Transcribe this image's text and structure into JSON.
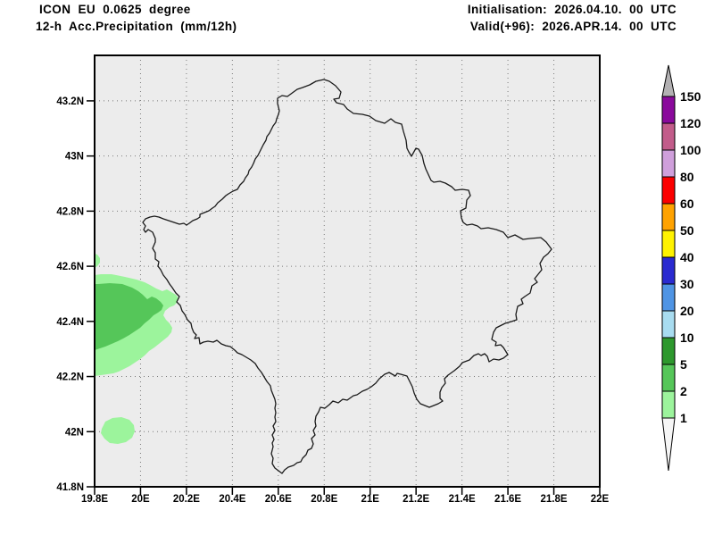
{
  "page": {
    "background": "#ffffff"
  },
  "header": {
    "title_line1": "ICON EU 0.0625 degree",
    "title_line2": "12-h Acc.Precipitation (mm/12h)",
    "init_label": "Initialisation: 2026.04.10. 00 UTC",
    "valid_label": "Valid(+96): 2026.APR.14. 00 UTC"
  },
  "map": {
    "land_color": "#ececec",
    "frame_color": "#000000",
    "grid_color": "#7a7a7a",
    "country_outline_color": "#1a1a1a",
    "lon_range": [
      19.8,
      22.0
    ],
    "lat_range": [
      41.8,
      43.365
    ],
    "x_ticks": [
      {
        "v": 19.8,
        "label": "19.8E"
      },
      {
        "v": 20.0,
        "label": "20E"
      },
      {
        "v": 20.2,
        "label": "20.2E"
      },
      {
        "v": 20.4,
        "label": "20.4E"
      },
      {
        "v": 20.6,
        "label": "20.6E"
      },
      {
        "v": 20.8,
        "label": "20.8E"
      },
      {
        "v": 21.0,
        "label": "21E"
      },
      {
        "v": 21.2,
        "label": "21.2E"
      },
      {
        "v": 21.4,
        "label": "21.4E"
      },
      {
        "v": 21.6,
        "label": "21.6E"
      },
      {
        "v": 21.8,
        "label": "21.8E"
      },
      {
        "v": 22.0,
        "label": "22E"
      }
    ],
    "y_ticks": [
      {
        "v": 43.2,
        "label": "43.2N"
      },
      {
        "v": 43.0,
        "label": "43N"
      },
      {
        "v": 42.8,
        "label": "42.8N"
      },
      {
        "v": 42.6,
        "label": "42.6N"
      },
      {
        "v": 42.4,
        "label": "42.4N"
      },
      {
        "v": 42.2,
        "label": "42.2N"
      },
      {
        "v": 42.0,
        "label": "42N"
      },
      {
        "v": 41.8,
        "label": "41.8N"
      }
    ]
  },
  "colorbar": {
    "unit": "mm/12h",
    "levels": [
      1,
      2,
      5,
      10,
      20,
      30,
      40,
      50,
      60,
      80,
      100,
      120,
      150
    ],
    "segment_colors": [
      "#9cf49c",
      "#55c659",
      "#2d982d",
      "#a8dcf0",
      "#4f94e4",
      "#2a2ad0",
      "#fff200",
      "#ffa200",
      "#fb0000",
      "#cf9fdb",
      "#c25c8a",
      "#8a0a9c"
    ],
    "over_arrow_color": "#b3b1b3",
    "under_arrow_color": "#f6f6f6"
  },
  "precipitation": {
    "regions": [
      {
        "value_range_mm": "1-2",
        "color": "#9cf49c",
        "points": [
          [
            0,
            246
          ],
          [
            7,
            245
          ],
          [
            19,
            245
          ],
          [
            34,
            248
          ],
          [
            47,
            251
          ],
          [
            56,
            254
          ],
          [
            62,
            257
          ],
          [
            69,
            261
          ],
          [
            76,
            264
          ],
          [
            81,
            262
          ],
          [
            86,
            265
          ],
          [
            91,
            268
          ],
          [
            94,
            272
          ],
          [
            92,
            277
          ],
          [
            89,
            280
          ],
          [
            84,
            282
          ],
          [
            79,
            286
          ],
          [
            77,
            291
          ],
          [
            80,
            296
          ],
          [
            84,
            300
          ],
          [
            87,
            305
          ],
          [
            86,
            310
          ],
          [
            82,
            315
          ],
          [
            77,
            319
          ],
          [
            72,
            323
          ],
          [
            67,
            327
          ],
          [
            61,
            331
          ],
          [
            56,
            336
          ],
          [
            51,
            340
          ],
          [
            45,
            344
          ],
          [
            39,
            348
          ],
          [
            33,
            351
          ],
          [
            27,
            354
          ],
          [
            21,
            356
          ],
          [
            14,
            357
          ],
          [
            7,
            358
          ],
          [
            0,
            359
          ]
        ]
      },
      {
        "value_range_mm": "2-5",
        "color": "#55c659",
        "points": [
          [
            0,
            256
          ],
          [
            4,
            256
          ],
          [
            17,
            255
          ],
          [
            31,
            256
          ],
          [
            42,
            260
          ],
          [
            49,
            264
          ],
          [
            54,
            268
          ],
          [
            59,
            273
          ],
          [
            64,
            270
          ],
          [
            69,
            272
          ],
          [
            74,
            276
          ],
          [
            77,
            280
          ],
          [
            75,
            285
          ],
          [
            71,
            288
          ],
          [
            66,
            291
          ],
          [
            61,
            296
          ],
          [
            56,
            300
          ],
          [
            51,
            305
          ],
          [
            45,
            309
          ],
          [
            39,
            313
          ],
          [
            32,
            317
          ],
          [
            26,
            320
          ],
          [
            19,
            323
          ],
          [
            12,
            326
          ],
          [
            6,
            328
          ],
          [
            0,
            330
          ]
        ]
      },
      {
        "value_range_mm": "1-2",
        "color": "#9cf49c",
        "points": [
          [
            8,
            418
          ],
          [
            12,
            410
          ],
          [
            20,
            406
          ],
          [
            30,
            405
          ],
          [
            39,
            408
          ],
          [
            44,
            414
          ],
          [
            45,
            421
          ],
          [
            42,
            428
          ],
          [
            35,
            433
          ],
          [
            26,
            435
          ],
          [
            17,
            434
          ],
          [
            11,
            429
          ],
          [
            7,
            423
          ]
        ]
      },
      {
        "value_range_mm": "1-2",
        "color": "#9cf49c",
        "points": [
          [
            0,
            222
          ],
          [
            3,
            223
          ],
          [
            6,
            227
          ],
          [
            6,
            232
          ],
          [
            3,
            236
          ],
          [
            0,
            238
          ]
        ]
      }
    ]
  },
  "country_outline_points": [
    [
      205,
      48
    ],
    [
      210,
      45
    ],
    [
      216,
      46
    ],
    [
      227,
      38
    ],
    [
      233,
      36
    ],
    [
      241,
      33
    ],
    [
      248,
      29
    ],
    [
      257,
      27
    ],
    [
      263,
      29
    ],
    [
      270,
      34
    ],
    [
      276,
      41
    ],
    [
      274,
      48
    ],
    [
      268,
      49
    ],
    [
      271,
      53
    ],
    [
      279,
      55
    ],
    [
      283,
      60
    ],
    [
      290,
      65
    ],
    [
      300,
      66
    ],
    [
      308,
      68
    ],
    [
      315,
      73
    ],
    [
      325,
      76
    ],
    [
      332,
      71
    ],
    [
      337,
      75
    ],
    [
      344,
      77
    ],
    [
      346,
      85
    ],
    [
      349,
      95
    ],
    [
      350,
      104
    ],
    [
      352,
      108
    ],
    [
      355,
      113
    ],
    [
      360,
      104
    ],
    [
      363,
      105
    ],
    [
      367,
      112
    ],
    [
      369,
      121
    ],
    [
      371,
      127
    ],
    [
      377,
      140
    ],
    [
      380,
      142
    ],
    [
      387,
      141
    ],
    [
      393,
      143
    ],
    [
      400,
      147
    ],
    [
      404,
      151
    ],
    [
      412,
      150
    ],
    [
      419,
      151
    ],
    [
      421,
      157
    ],
    [
      417,
      162
    ],
    [
      416,
      171
    ],
    [
      410,
      174
    ],
    [
      411,
      182
    ],
    [
      413,
      187
    ],
    [
      417,
      190
    ],
    [
      423,
      189
    ],
    [
      429,
      191
    ],
    [
      433,
      194
    ],
    [
      441,
      193
    ],
    [
      450,
      195
    ],
    [
      458,
      198
    ],
    [
      463,
      204
    ],
    [
      471,
      201
    ],
    [
      480,
      206
    ],
    [
      488,
      205
    ],
    [
      500,
      204
    ],
    [
      506,
      209
    ],
    [
      512,
      217
    ],
    [
      508,
      222
    ],
    [
      503,
      226
    ],
    [
      499,
      233
    ],
    [
      501,
      240
    ],
    [
      493,
      250
    ],
    [
      496,
      254
    ],
    [
      490,
      258
    ],
    [
      488,
      266
    ],
    [
      482,
      270
    ],
    [
      478,
      273
    ],
    [
      480,
      278
    ],
    [
      474,
      281
    ],
    [
      472,
      290
    ],
    [
      473,
      296
    ],
    [
      467,
      298
    ],
    [
      460,
      300
    ],
    [
      450,
      305
    ],
    [
      447,
      310
    ],
    [
      445,
      318
    ],
    [
      450,
      321
    ],
    [
      449,
      325
    ],
    [
      455,
      324
    ],
    [
      458,
      327
    ],
    [
      463,
      335
    ],
    [
      458,
      339
    ],
    [
      453,
      341
    ],
    [
      447,
      340
    ],
    [
      442,
      343
    ],
    [
      440,
      337
    ],
    [
      437,
      334
    ],
    [
      433,
      336
    ],
    [
      430,
      334
    ],
    [
      425,
      336
    ],
    [
      420,
      341
    ],
    [
      412,
      344
    ],
    [
      409,
      348
    ],
    [
      403,
      353
    ],
    [
      396,
      358
    ],
    [
      392,
      362
    ],
    [
      393,
      367
    ],
    [
      389,
      372
    ],
    [
      387,
      377
    ],
    [
      387,
      384
    ],
    [
      390,
      387
    ],
    [
      385,
      390
    ],
    [
      380,
      392
    ],
    [
      375,
      394
    ],
    [
      370,
      392
    ],
    [
      365,
      390
    ],
    [
      361,
      385
    ],
    [
      358,
      378
    ],
    [
      356,
      371
    ],
    [
      352,
      363
    ],
    [
      350,
      359
    ],
    [
      343,
      357
    ],
    [
      339,
      356
    ],
    [
      337,
      359
    ],
    [
      330,
      355
    ],
    [
      325,
      357
    ],
    [
      319,
      362
    ],
    [
      315,
      367
    ],
    [
      310,
      371
    ],
    [
      305,
      374
    ],
    [
      300,
      376
    ],
    [
      294,
      380
    ],
    [
      290,
      381
    ],
    [
      283,
      386
    ],
    [
      278,
      385
    ],
    [
      273,
      389
    ],
    [
      267,
      387
    ],
    [
      263,
      391
    ],
    [
      258,
      395
    ],
    [
      253,
      394
    ],
    [
      251,
      399
    ],
    [
      248,
      404
    ],
    [
      247,
      410
    ],
    [
      248,
      415
    ],
    [
      245,
      420
    ],
    [
      247,
      425
    ],
    [
      243,
      429
    ],
    [
      245,
      435
    ],
    [
      243,
      440
    ],
    [
      239,
      442
    ],
    [
      237,
      447
    ],
    [
      233,
      451
    ],
    [
      231,
      455
    ],
    [
      227,
      456
    ],
    [
      223,
      459
    ],
    [
      217,
      461
    ],
    [
      213,
      464
    ],
    [
      210,
      468
    ],
    [
      206,
      465
    ],
    [
      202,
      462
    ],
    [
      199,
      457
    ],
    [
      200,
      451
    ],
    [
      198,
      446
    ],
    [
      200,
      438
    ],
    [
      199,
      434
    ],
    [
      201,
      430
    ],
    [
      199,
      425
    ],
    [
      202,
      420
    ],
    [
      200,
      415
    ],
    [
      203,
      410
    ],
    [
      202,
      405
    ],
    [
      203,
      400
    ],
    [
      202,
      395
    ],
    [
      203,
      390
    ],
    [
      202,
      385
    ],
    [
      200,
      380
    ],
    [
      198,
      375
    ],
    [
      197,
      370
    ],
    [
      193,
      365
    ],
    [
      190,
      360
    ],
    [
      187,
      355
    ],
    [
      183,
      350
    ],
    [
      180,
      345
    ],
    [
      175,
      341
    ],
    [
      170,
      338
    ],
    [
      165,
      335
    ],
    [
      160,
      333
    ],
    [
      157,
      330
    ],
    [
      152,
      326
    ],
    [
      147,
      325
    ],
    [
      142,
      323
    ],
    [
      137,
      319
    ],
    [
      133,
      321
    ],
    [
      127,
      320
    ],
    [
      122,
      321
    ],
    [
      118,
      323
    ],
    [
      117,
      316
    ],
    [
      112,
      317
    ],
    [
      114,
      313
    ],
    [
      111,
      310
    ],
    [
      109,
      305
    ],
    [
      108,
      300
    ],
    [
      104,
      296
    ],
    [
      101,
      290
    ],
    [
      98,
      286
    ],
    [
      96,
      280
    ],
    [
      92,
      276
    ],
    [
      95,
      270
    ],
    [
      91,
      266
    ],
    [
      87,
      260
    ],
    [
      84,
      256
    ],
    [
      81,
      251
    ],
    [
      77,
      246
    ],
    [
      74,
      240
    ],
    [
      71,
      236
    ],
    [
      72,
      231
    ],
    [
      68,
      228
    ],
    [
      68,
      221
    ],
    [
      65,
      216
    ],
    [
      68,
      209
    ],
    [
      68,
      205
    ],
    [
      65,
      198
    ],
    [
      60,
      195
    ],
    [
      57,
      198
    ],
    [
      55,
      195
    ],
    [
      57,
      191
    ],
    [
      54,
      187
    ],
    [
      57,
      183
    ],
    [
      62,
      181
    ],
    [
      67,
      180
    ],
    [
      72,
      181
    ],
    [
      77,
      183
    ],
    [
      83,
      185
    ],
    [
      89,
      187
    ],
    [
      95,
      189
    ],
    [
      100,
      188
    ],
    [
      103,
      190
    ],
    [
      106,
      188
    ],
    [
      110,
      185
    ],
    [
      115,
      183
    ],
    [
      118,
      181
    ],
    [
      118,
      178
    ],
    [
      123,
      176
    ],
    [
      128,
      174
    ],
    [
      132,
      171
    ],
    [
      135,
      169
    ],
    [
      138,
      165
    ],
    [
      143,
      161
    ],
    [
      147,
      157
    ],
    [
      150,
      155
    ],
    [
      155,
      152
    ],
    [
      160,
      150
    ],
    [
      163,
      145
    ],
    [
      167,
      141
    ],
    [
      169,
      137
    ],
    [
      172,
      133
    ],
    [
      173,
      129
    ],
    [
      176,
      125
    ],
    [
      178,
      121
    ],
    [
      180,
      116
    ],
    [
      183,
      112
    ],
    [
      185,
      108
    ],
    [
      187,
      104
    ],
    [
      189,
      100
    ],
    [
      192,
      95
    ],
    [
      193,
      91
    ],
    [
      196,
      87
    ],
    [
      198,
      83
    ],
    [
      200,
      79
    ],
    [
      203,
      75
    ],
    [
      204,
      71
    ],
    [
      206,
      66
    ],
    [
      207,
      62
    ],
    [
      206,
      58
    ],
    [
      205,
      54
    ]
  ]
}
